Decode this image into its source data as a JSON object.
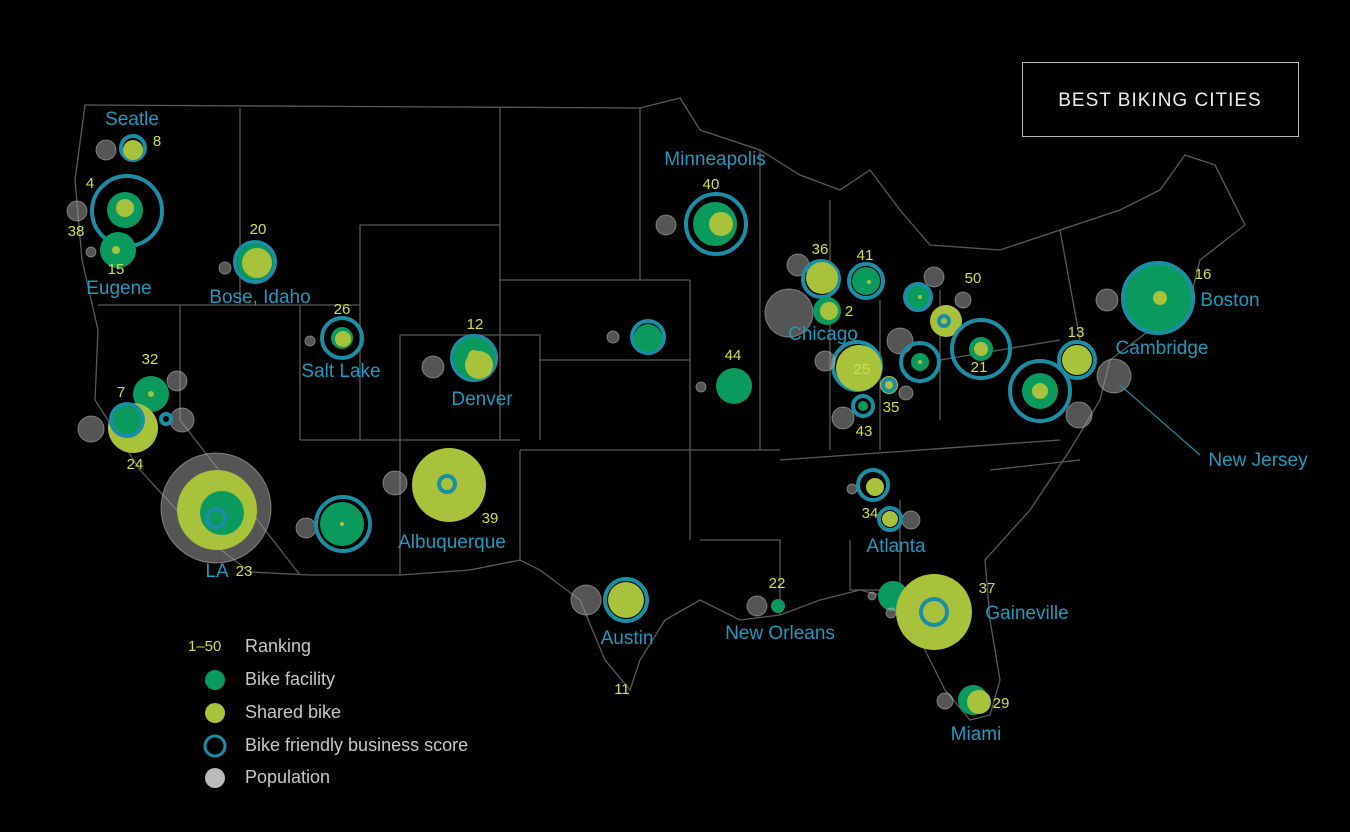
{
  "title": "BEST BIKING CITIES",
  "cities": [
    "Seatle",
    "Eugene",
    "Bose, Idaho",
    "Salt Lake",
    "Denver",
    "Minneapolis",
    "Chicago",
    "Boston",
    "Cambridge",
    "New Jersey",
    "Atlanta",
    "Albuquerque",
    "LA",
    "Austin",
    "New Orleans",
    "Gaineville",
    "Miami"
  ],
  "ranks": [
    8,
    4,
    38,
    15,
    20,
    26,
    12,
    32,
    7,
    24,
    23,
    39,
    40,
    44,
    36,
    41,
    2,
    50,
    25,
    35,
    43,
    21,
    13,
    16,
    22,
    34,
    37,
    29,
    11
  ],
  "legend": {
    "range": "1–50",
    "items": [
      "Ranking",
      "Bike facility",
      "Shared bike",
      "Bike friendly business score",
      "Population"
    ]
  }
}
